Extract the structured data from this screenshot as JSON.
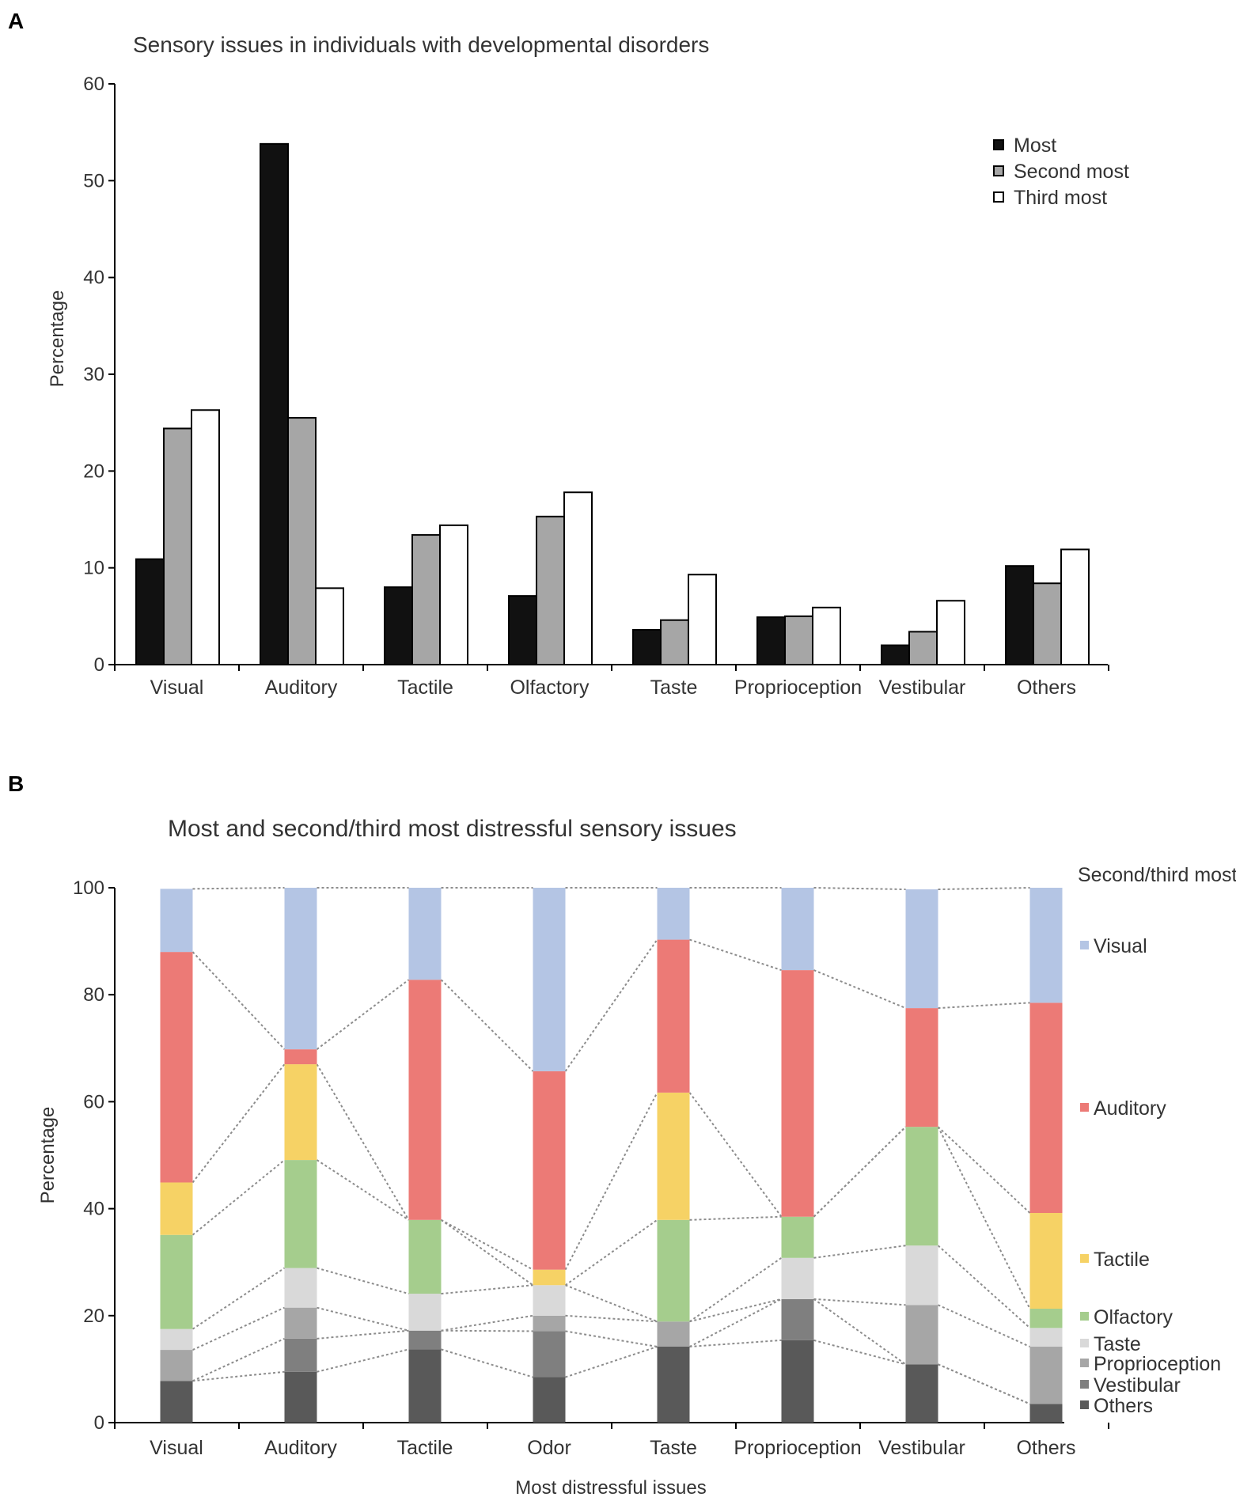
{
  "chart_data": [
    {
      "panel": "A",
      "type": "bar",
      "title": "Sensory issues in individuals with developmental disorders",
      "xlabel": "",
      "ylabel": "Percentage",
      "ylim": [
        0,
        60
      ],
      "yticks": [
        0,
        10,
        20,
        30,
        40,
        50,
        60
      ],
      "categories": [
        "Visual",
        "Auditory",
        "Tactile",
        "Olfactory",
        "Taste",
        "Proprioception",
        "Vestibular",
        "Others"
      ],
      "series": [
        {
          "name": "Most",
          "color": "#111111",
          "values": [
            10.9,
            53.8,
            8.0,
            7.1,
            3.6,
            4.9,
            2.0,
            10.2
          ]
        },
        {
          "name": "Second most",
          "color": "#a6a6a6",
          "values": [
            24.4,
            25.5,
            13.4,
            15.3,
            4.6,
            5.0,
            3.4,
            8.4
          ]
        },
        {
          "name": "Third most",
          "color": "#ffffff",
          "values": [
            26.3,
            7.9,
            14.4,
            17.8,
            9.3,
            5.9,
            6.6,
            11.9
          ]
        }
      ],
      "legend_position": "top-right"
    },
    {
      "panel": "B",
      "type": "bar",
      "stacked": true,
      "title": "Most and second/third most distressful sensory issues",
      "xlabel": "Most distressful issues",
      "ylabel": "Percentage",
      "ylim": [
        0,
        100
      ],
      "yticks": [
        0,
        20,
        40,
        60,
        80,
        100
      ],
      "categories": [
        "Visual",
        "Auditory",
        "Tactile",
        "Odor",
        "Taste",
        "Proprioception",
        "Vestibular",
        "Others"
      ],
      "legend_title": "Second/third most issues",
      "series": [
        {
          "name": "Others",
          "color": "#595959",
          "values": [
            7.8,
            9.5,
            13.7,
            8.5,
            14.2,
            15.4,
            10.9,
            3.5
          ]
        },
        {
          "name": "Vestibular",
          "color": "#7f7f7f",
          "values": [
            0,
            6.2,
            3.5,
            8.6,
            0,
            7.7,
            0,
            0
          ]
        },
        {
          "name": "Proprioception",
          "color": "#a6a6a6",
          "values": [
            5.8,
            5.8,
            0,
            2.9,
            4.7,
            0,
            11.1,
            10.7
          ]
        },
        {
          "name": "Taste",
          "color": "#d9d9d9",
          "values": [
            3.9,
            7.4,
            6.9,
            5.7,
            0,
            7.7,
            11.1,
            3.5
          ]
        },
        {
          "name": "Olfactory",
          "color": "#a5cd8d",
          "values": [
            17.6,
            20.2,
            13.8,
            0,
            19.0,
            7.7,
            22.2,
            3.6
          ]
        },
        {
          "name": "Tactile",
          "color": "#f6d265",
          "values": [
            9.8,
            17.9,
            0,
            2.9,
            23.8,
            0,
            0,
            17.9
          ]
        },
        {
          "name": "Auditory",
          "color": "#ec7a76",
          "values": [
            43.1,
            2.8,
            44.9,
            37.1,
            28.6,
            46.1,
            22.2,
            39.3
          ]
        },
        {
          "name": "Visual",
          "color": "#b4c5e4",
          "values": [
            11.8,
            30.2,
            17.2,
            34.3,
            9.7,
            15.4,
            22.2,
            21.5
          ]
        }
      ],
      "legend_position": "right"
    }
  ],
  "panels": {
    "a": {
      "letter": "A"
    },
    "b": {
      "letter": "B"
    }
  }
}
